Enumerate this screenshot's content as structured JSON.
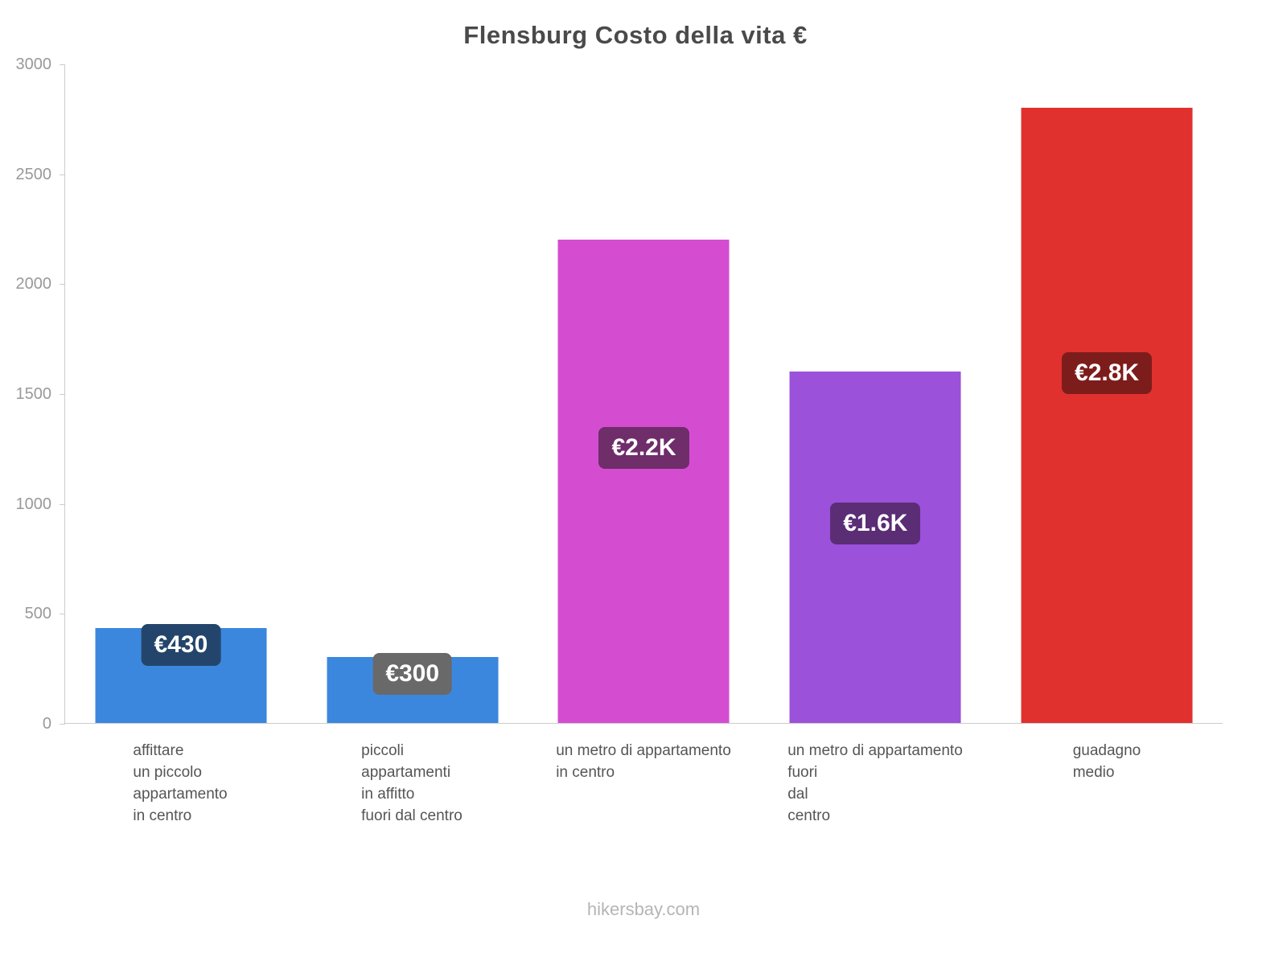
{
  "title": "Flensburg Costo della vita €",
  "footer": "hikersbay.com",
  "chart_data": {
    "type": "bar",
    "title": "Flensburg Costo della vita €",
    "currency": "€",
    "categories": [
      "affittare un piccolo appartamento in centro",
      "piccoli appartamenti in affitto fuori dal centro",
      "un metro di appartamento in centro",
      "un metro di appartamento fuori dal centro",
      "guadagno medio"
    ],
    "categories_display": [
      "affittare\nun piccolo\nappartamento\nin centro",
      "piccoli\nappartamenti\nin affitto\nfuori dal centro",
      "un metro di appartamento\nin centro",
      "un metro di appartamento\nfuori\ndal\ncentro",
      "guadagno\nmedio"
    ],
    "values": [
      430,
      300,
      2200,
      1600,
      2800
    ],
    "value_labels": [
      "€430",
      "€300",
      "€2.2K",
      "€1.6K",
      "€2.8K"
    ],
    "bar_colors": [
      "#3b87de",
      "#3b87de",
      "#d44dd1",
      "#9b51da",
      "#e0312e"
    ],
    "badge_colors": [
      "#24456b",
      "#696969",
      "#6f2d6a",
      "#5b2d75",
      "#7d1d1b"
    ],
    "xlabel": "",
    "ylabel": "",
    "ylim": [
      0,
      3000
    ],
    "yticks": [
      0,
      500,
      1000,
      1500,
      2000,
      2500,
      3000
    ],
    "grid": false,
    "legend": false
  }
}
